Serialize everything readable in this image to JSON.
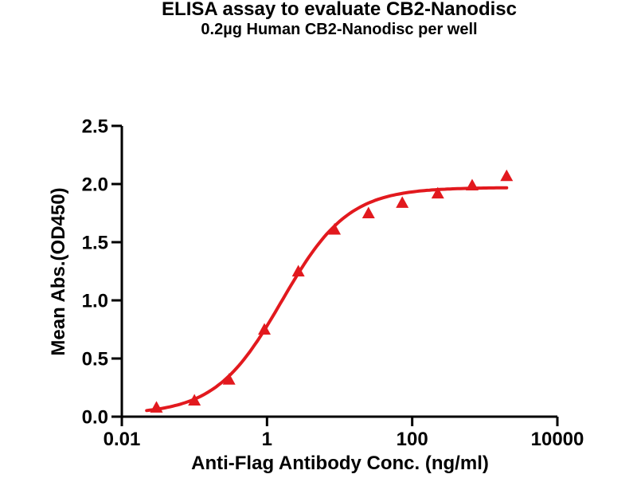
{
  "page": {
    "background": "#ffffff",
    "text_color": "#000000"
  },
  "chart_data": {
    "type": "scatter",
    "title": "ELISA assay to evaluate CB2-Nanodisc",
    "subtitle": "0.2µg Human CB2-Nanodisc per well",
    "xlabel": "Anti-Flag Antibody Conc. (ng/ml)",
    "ylabel": "Mean Abs.(OD450)",
    "x_scale": "log10",
    "xlim": [
      0.01,
      10000
    ],
    "ylim": [
      0,
      2.5
    ],
    "x_ticks": [
      0.01,
      1,
      100,
      10000
    ],
    "x_tick_labels": [
      "0.01",
      "1",
      "100",
      "10000"
    ],
    "y_ticks": [
      0,
      0.5,
      1.0,
      1.5,
      2.0,
      2.5
    ],
    "y_tick_labels": [
      "0.0",
      "0.5",
      "1.0",
      "1.5",
      "2.0",
      "2.5"
    ],
    "grid": false,
    "legend": false,
    "series": [
      {
        "name": "Human CB2-Nanodisc",
        "marker": "triangle-up",
        "color": "#E2191E",
        "x": [
          0.03,
          0.1,
          0.3,
          0.92,
          2.7,
          8.5,
          25,
          73,
          225,
          670,
          2000
        ],
        "y": [
          0.08,
          0.14,
          0.32,
          0.75,
          1.25,
          1.61,
          1.75,
          1.84,
          1.92,
          1.99,
          2.07
        ]
      }
    ],
    "fit_curve": {
      "model": "4PL",
      "bottom": 0.02,
      "top": 1.97,
      "ec50": 1.6,
      "hill": 0.95,
      "x_start": 0.022,
      "x_end": 2000,
      "color": "#E2191E"
    },
    "axis_color": "#000000"
  }
}
